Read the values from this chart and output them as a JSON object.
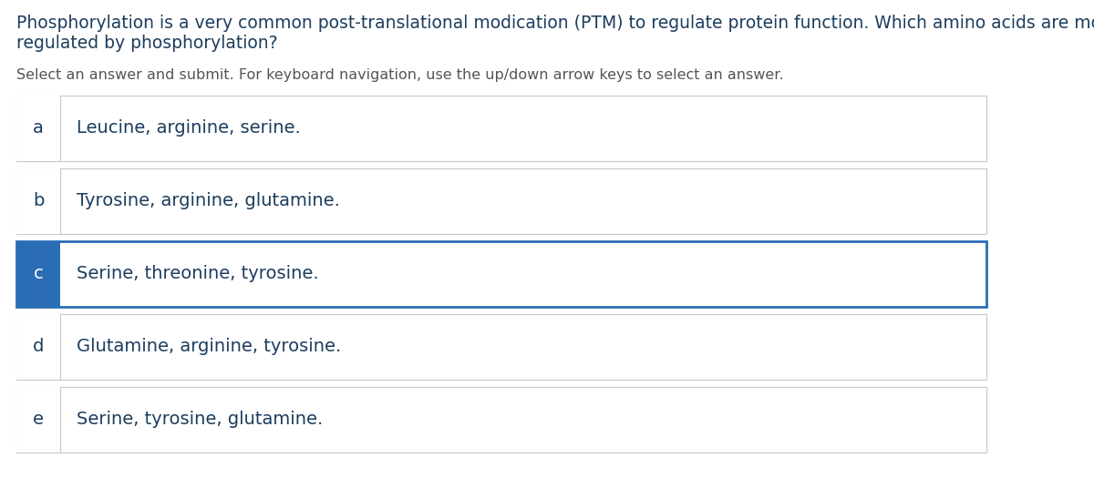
{
  "title_line1": "Phosphorylation is a very common post-translational modication (PTM) to regulate protein function. Which amino acids are most commonly",
  "title_line2": "regulated by phosphorylation?",
  "subtitle": "Select an answer and submit. For keyboard navigation, use the up/down arrow keys to select an answer.",
  "options": [
    {
      "letter": "a",
      "text": "Leucine, arginine, serine.",
      "selected": false
    },
    {
      "letter": "b",
      "text": "Tyrosine, arginine, glutamine.",
      "selected": false
    },
    {
      "letter": "c",
      "text": "Serine, threonine, tyrosine.",
      "selected": true
    },
    {
      "letter": "d",
      "text": "Glutamine, arginine, tyrosine.",
      "selected": false
    },
    {
      "letter": "e",
      "text": "Serine, tyrosine, glutamine.",
      "selected": false
    }
  ],
  "bg_color": "#ffffff",
  "title_color": "#1c3d5e",
  "subtitle_color": "#555555",
  "option_text_color": "#1c3d5e",
  "letter_color_normal": "#1c3d5e",
  "letter_color_selected": "#ffffff",
  "selected_bg": "#2a6db5",
  "selected_border": "#2a6db5",
  "normal_border": "#c8c8c8",
  "normal_bg": "#ffffff",
  "letter_bg_normal": "#ffffff",
  "divider_color": "#c8c8c8",
  "title_fontsize": 13.5,
  "subtitle_fontsize": 11.5,
  "option_fontsize": 14,
  "letter_fontsize": 14
}
